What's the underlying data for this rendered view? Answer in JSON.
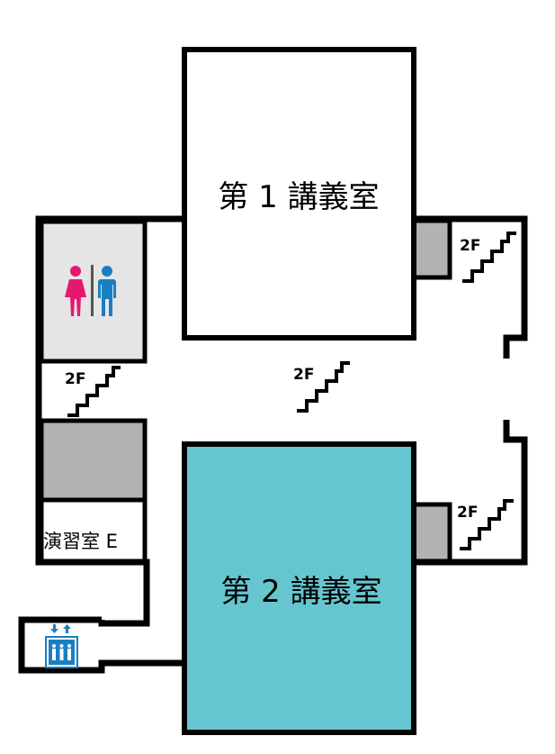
{
  "rooms": {
    "lecture_room_1": {
      "label": "第 1 講義室"
    },
    "lecture_room_2": {
      "label": "第 2 講義室"
    },
    "seminar_room_e": {
      "label": "演習室 E"
    }
  },
  "stairs": {
    "label": "2F"
  },
  "icons": {
    "restroom": "restroom-icon",
    "elevator": "elevator-icon",
    "stairs": "stairs-up-icon"
  },
  "colors": {
    "lecture_room_2_fill": "#66c6cf",
    "restroom_fill": "#e5e5e5",
    "storage_fill": "#b2b2b2",
    "female": "#e5176e",
    "male": "#1a7fc2",
    "elevator": "#1a7fc2",
    "wall": "#000000"
  }
}
